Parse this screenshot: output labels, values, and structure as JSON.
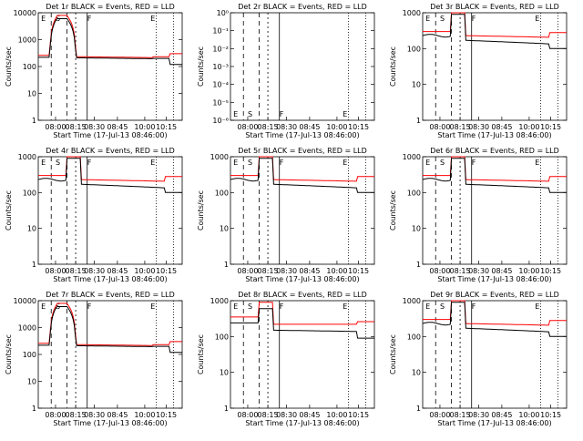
{
  "chart_data": [
    {
      "type": "line",
      "title": "Det 1r BLACK = Events, RED = LLD",
      "ylabel": "Counts/sec",
      "xlabel": "Start Time (17-Jul-13 08:46:00)",
      "yscale": "log",
      "ylim": [
        1,
        10000
      ],
      "yticks": [
        "1",
        "10",
        "100",
        "1000",
        "10000"
      ],
      "xticks": [
        "08:00",
        "08:15",
        "08:30",
        "08:45",
        "10:00",
        "10:15"
      ],
      "markers": [
        "E",
        "S",
        "F",
        "E"
      ],
      "has_data": true,
      "variant": "spike"
    },
    {
      "type": "line",
      "title": "Det 2r BLACK = Events, RED = LLD",
      "ylabel": "Counts/sec",
      "xlabel": "Start Time (17-Jul-13 08:46:00)",
      "yscale": "log",
      "ylim": [
        1e-06,
        1
      ],
      "yticks": [
        "10⁻⁶",
        "10⁻⁵",
        "10⁻⁴",
        "10⁻³",
        "10⁻²",
        "10⁻¹",
        "10⁰"
      ],
      "xticks": [
        "08:00",
        "08:15",
        "08:30",
        "08:45",
        "10:00",
        "10:15"
      ],
      "markers": [
        "E",
        "S",
        "F",
        "E"
      ],
      "has_data": false,
      "variant": "none"
    },
    {
      "type": "line",
      "title": "Det 3r BLACK = Events, RED = LLD",
      "ylabel": "Counts/sec",
      "xlabel": "Start Time (17-Jul-13 08:46:00)",
      "yscale": "log",
      "ylim": [
        1,
        1000
      ],
      "yticks": [
        "1",
        "10",
        "100",
        "1000"
      ],
      "xticks": [
        "08:00",
        "08:15",
        "08:30",
        "08:45",
        "10:00",
        "10:15"
      ],
      "markers": [
        "E",
        "S",
        "F",
        "E"
      ],
      "has_data": true,
      "variant": "flat"
    },
    {
      "type": "line",
      "title": "Det 4r BLACK = Events, RED = LLD",
      "ylabel": "Counts/sec",
      "xlabel": "Start Time (17-Jul-13 08:46:00)",
      "yscale": "log",
      "ylim": [
        1,
        1000
      ],
      "yticks": [
        "1",
        "10",
        "100",
        "1000"
      ],
      "xticks": [
        "08:00",
        "08:15",
        "08:30",
        "08:45",
        "10:00",
        "10:15"
      ],
      "markers": [
        "E",
        "S",
        "F",
        "E"
      ],
      "has_data": true,
      "variant": "flat"
    },
    {
      "type": "line",
      "title": "Det 5r BLACK = Events, RED = LLD",
      "ylabel": "Counts/sec",
      "xlabel": "Start Time (17-Jul-13 08:46:00)",
      "yscale": "log",
      "ylim": [
        1,
        1000
      ],
      "yticks": [
        "1",
        "10",
        "100",
        "1000"
      ],
      "xticks": [
        "08:00",
        "08:15",
        "08:30",
        "08:45",
        "10:00",
        "10:15"
      ],
      "markers": [
        "E",
        "S",
        "F",
        "E"
      ],
      "has_data": true,
      "variant": "flat"
    },
    {
      "type": "line",
      "title": "Det 6r BLACK = Events, RED = LLD",
      "ylabel": "Counts/sec",
      "xlabel": "Start Time (17-Jul-13 08:46:00)",
      "yscale": "log",
      "ylim": [
        1,
        1000
      ],
      "yticks": [
        "1",
        "10",
        "100",
        "1000"
      ],
      "xticks": [
        "08:00",
        "08:15",
        "08:30",
        "08:45",
        "10:00",
        "10:15"
      ],
      "markers": [
        "E",
        "S",
        "F",
        "E"
      ],
      "has_data": true,
      "variant": "flat"
    },
    {
      "type": "line",
      "title": "Det 7r BLACK = Events, RED = LLD",
      "ylabel": "Counts/sec",
      "xlabel": "Start Time (17-Jul-13 08:46:00)",
      "yscale": "log",
      "ylim": [
        1,
        10000
      ],
      "yticks": [
        "1",
        "10",
        "100",
        "1000",
        "10000"
      ],
      "xticks": [
        "08:00",
        "08:15",
        "08:30",
        "08:45",
        "10:00",
        "10:15"
      ],
      "markers": [
        "E",
        "S",
        "F",
        "E"
      ],
      "has_data": true,
      "variant": "spike"
    },
    {
      "type": "line",
      "title": "Det 8r BLACK = Events, RED = LLD",
      "ylabel": "Counts/sec",
      "xlabel": "Start Time (17-Jul-13 08:46:00)",
      "yscale": "log",
      "ylim": [
        1,
        1000
      ],
      "yticks": [
        "1",
        "10",
        "100",
        "1000"
      ],
      "xticks": [
        "08:00",
        "08:15",
        "08:30",
        "08:45",
        "10:00",
        "10:15"
      ],
      "markers": [
        "E",
        "S",
        "F",
        "E"
      ],
      "has_data": true,
      "variant": "high"
    },
    {
      "type": "line",
      "title": "Det 9r BLACK = Events, RED = LLD",
      "ylabel": "Counts/sec",
      "xlabel": "Start Time (17-Jul-13 08:46:00)",
      "yscale": "log",
      "ylim": [
        1,
        1000
      ],
      "yticks": [
        "1",
        "10",
        "100",
        "1000"
      ],
      "xticks": [
        "08:00",
        "08:15",
        "08:30",
        "08:45",
        "10:00",
        "10:15"
      ],
      "markers": [
        "E",
        "S",
        "F",
        "E"
      ],
      "has_data": true,
      "variant": "flat"
    }
  ],
  "colors": {
    "events": "#000000",
    "lld": "#ff0000",
    "axis": "#000000"
  },
  "series_names": {
    "events": "BLACK = Events",
    "lld": "RED = LLD"
  }
}
